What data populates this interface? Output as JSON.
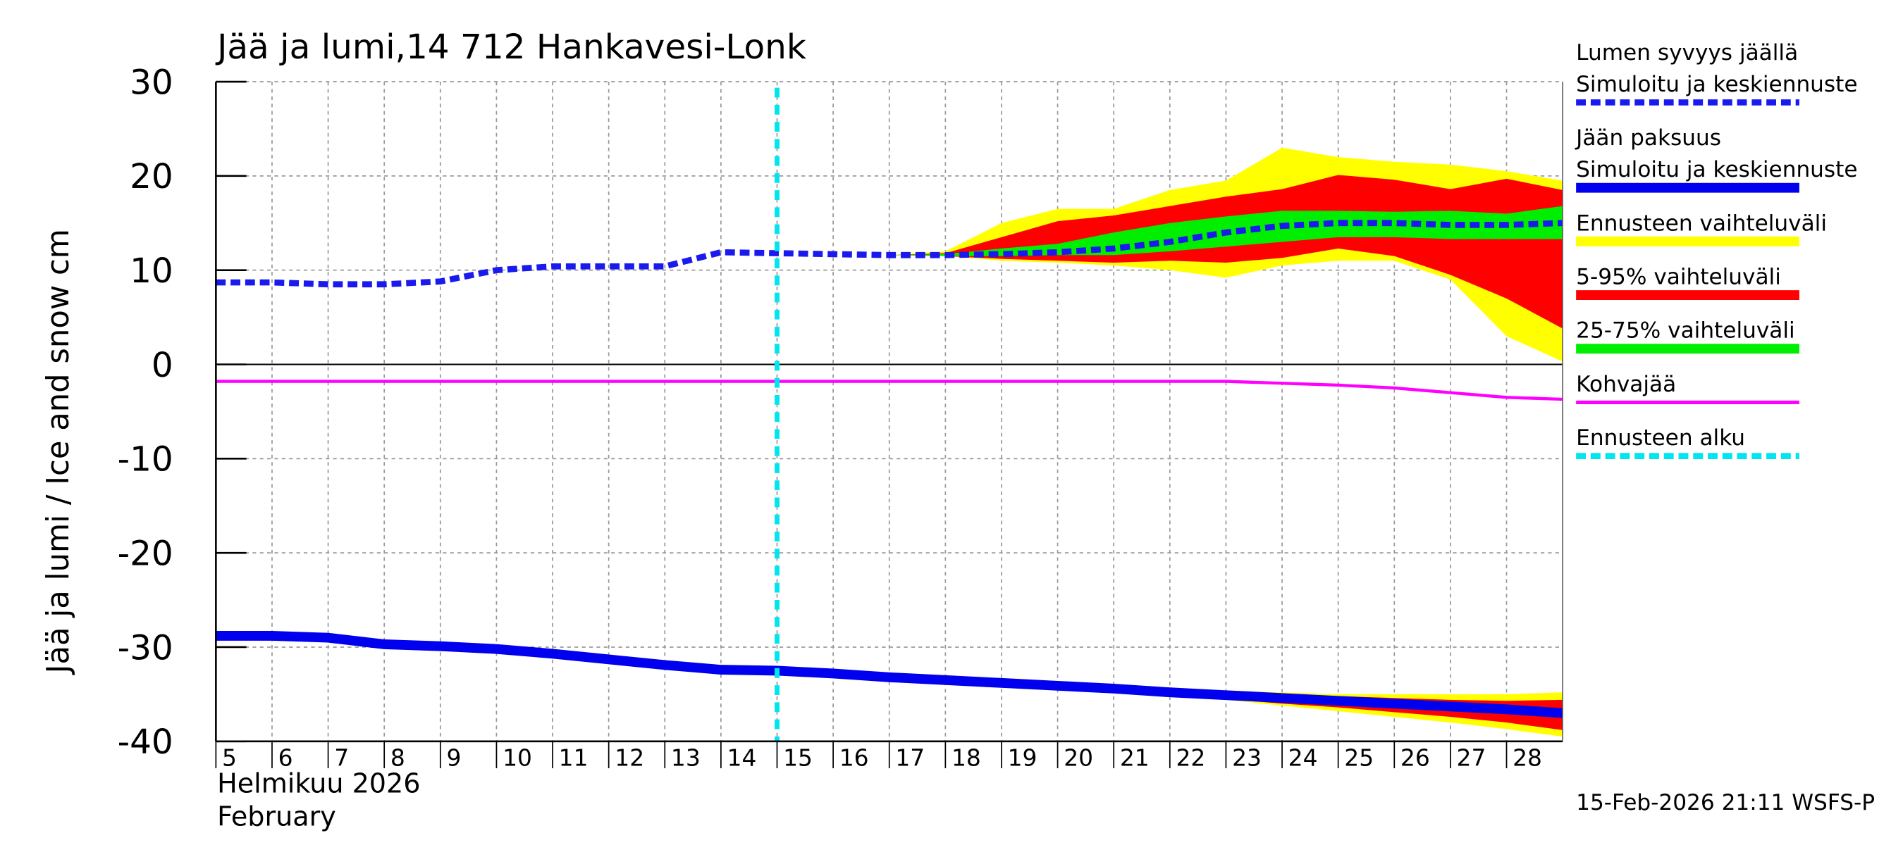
{
  "chart_data": {
    "type": "line",
    "title": "Jää ja lumi,14 712 Hankavesi-Lonk",
    "y_label": "Jää ja lumi / Ice and snow    cm",
    "x_label_lines": [
      "Helmikuu  2026",
      "February"
    ],
    "footer": "15-Feb-2026 21:11 WSFS-P",
    "xlim": [
      5,
      29
    ],
    "xticks": [
      5,
      6,
      7,
      8,
      9,
      10,
      11,
      12,
      13,
      14,
      15,
      16,
      17,
      18,
      19,
      20,
      21,
      22,
      23,
      24,
      25,
      26,
      27,
      28
    ],
    "ylim": [
      -40,
      30
    ],
    "yticks": [
      30,
      20,
      10,
      0,
      -10,
      -20,
      -30,
      -40
    ],
    "grid": true,
    "forecast_start": 15,
    "forecast_start_color": "#00e5ee",
    "series": [
      {
        "kind": "band",
        "color": "#ffff00",
        "x": [
          17,
          18,
          19,
          20,
          21,
          22,
          23,
          24,
          25,
          26,
          27,
          28,
          29
        ],
        "high": [
          11.6,
          12,
          15,
          16.5,
          16.5,
          18.5,
          19.5,
          23,
          22,
          21.5,
          21.2,
          20.5,
          19.5
        ],
        "low": [
          11.6,
          11.5,
          11,
          10.8,
          10.5,
          10,
          9.2,
          10.5,
          11,
          11,
          9,
          3,
          0.3
        ]
      },
      {
        "kind": "band",
        "color": "#ff0000",
        "x": [
          17,
          18,
          19,
          20,
          21,
          22,
          23,
          24,
          25,
          26,
          27,
          28,
          29
        ],
        "high": [
          11.6,
          11.8,
          13.5,
          15.2,
          15.8,
          16.8,
          17.8,
          18.6,
          20.1,
          19.6,
          18.6,
          19.7,
          18.5
        ],
        "low": [
          11.6,
          11.5,
          11.2,
          11,
          10.8,
          11,
          10.8,
          11.3,
          12.3,
          11.5,
          9.5,
          7,
          3.8
        ]
      },
      {
        "kind": "band",
        "color": "#00ee00",
        "x": [
          17,
          18,
          19,
          20,
          21,
          22,
          23,
          24,
          25,
          26,
          27,
          28,
          29
        ],
        "high": [
          11.6,
          11.7,
          12.3,
          12.8,
          14,
          15,
          15.7,
          16.3,
          16.3,
          16.2,
          16.3,
          16,
          16.8
        ],
        "low": [
          11.6,
          11.5,
          11.5,
          11.6,
          11.6,
          12,
          12.5,
          13,
          13.5,
          13.5,
          13.3,
          13.3,
          13.3
        ]
      },
      {
        "kind": "band",
        "color": "#ffff00",
        "x": [
          21,
          22,
          23,
          24,
          25,
          26,
          27,
          28,
          29
        ],
        "high": [
          -34.4,
          -34.4,
          -34.6,
          -34.8,
          -35,
          -35,
          -35,
          -35,
          -34.8
        ],
        "low": [
          -34.4,
          -35,
          -35.6,
          -36.2,
          -36.8,
          -37.4,
          -38,
          -38.7,
          -39.5
        ]
      },
      {
        "kind": "band",
        "color": "#ff0000",
        "x": [
          21,
          22,
          23,
          24,
          25,
          26,
          27,
          28,
          29
        ],
        "high": [
          -34.4,
          -34.6,
          -34.8,
          -35,
          -35.2,
          -35.4,
          -35.6,
          -35.7,
          -35.6
        ],
        "low": [
          -34.4,
          -35,
          -35.5,
          -36,
          -36.4,
          -36.9,
          -37.4,
          -38,
          -38.8
        ]
      },
      {
        "kind": "band",
        "color": "#00ee00",
        "x": [
          21,
          22,
          23,
          24,
          25,
          26,
          27,
          28,
          29
        ],
        "high": [
          -34.4,
          -34.6,
          -34.9,
          -35.2,
          -35.5,
          -35.8,
          -36.1,
          -36.4,
          -36.7
        ],
        "low": [
          -34.4,
          -34.9,
          -35.3,
          -35.6,
          -35.9,
          -36.2,
          -36.5,
          -36.8,
          -37.2
        ]
      },
      {
        "kind": "line",
        "style": "solid",
        "width": 2.5,
        "color": "#ff00ff",
        "x": [
          5,
          6,
          7,
          8,
          9,
          10,
          11,
          12,
          13,
          14,
          15,
          16,
          17,
          18,
          19,
          20,
          21,
          22,
          23,
          24,
          25,
          26,
          27,
          28,
          29
        ],
        "values": [
          -1.8,
          -1.8,
          -1.8,
          -1.8,
          -1.8,
          -1.8,
          -1.8,
          -1.8,
          -1.8,
          -1.8,
          -1.8,
          -1.8,
          -1.8,
          -1.8,
          -1.8,
          -1.8,
          -1.8,
          -1.8,
          -1.8,
          -2,
          -2.2,
          -2.5,
          -3,
          -3.5,
          -3.7
        ]
      },
      {
        "kind": "line",
        "style": "solid",
        "width": 8,
        "color": "#0000ee",
        "x": [
          5,
          6,
          7,
          8,
          9,
          10,
          11,
          12,
          13,
          14,
          15,
          16,
          17,
          18,
          19,
          20,
          21,
          22,
          23,
          24,
          25,
          26,
          27,
          28,
          29
        ],
        "values": [
          -28.8,
          -28.8,
          -29,
          -29.7,
          -29.9,
          -30.2,
          -30.7,
          -31.3,
          -31.9,
          -32.4,
          -32.5,
          -32.8,
          -33.2,
          -33.5,
          -33.8,
          -34.1,
          -34.4,
          -34.8,
          -35.1,
          -35.4,
          -35.7,
          -36,
          -36.3,
          -36.6,
          -37
        ]
      },
      {
        "kind": "line",
        "style": "dashed",
        "width": 5,
        "color": "#1a1aee",
        "x": [
          5,
          6,
          7,
          8,
          9,
          10,
          11,
          12,
          13,
          14,
          15,
          16,
          17,
          18,
          19,
          20,
          21,
          22,
          23,
          24,
          25,
          26,
          27,
          28,
          29
        ],
        "values": [
          8.7,
          8.7,
          8.5,
          8.5,
          8.8,
          10,
          10.4,
          10.4,
          10.4,
          11.9,
          11.8,
          11.7,
          11.6,
          11.6,
          11.7,
          11.9,
          12.3,
          13,
          14,
          14.7,
          15,
          15,
          14.8,
          14.8,
          15
        ]
      }
    ],
    "legend": [
      {
        "labels": [
          "Lumen syvyys jäällä",
          "Simuloitu ja keskiennuste"
        ],
        "color": "#1a1aee",
        "style": "dashed"
      },
      {
        "labels": [
          "Jään paksuus",
          "Simuloitu ja keskiennuste"
        ],
        "color": "#0000ee",
        "style": "solid"
      },
      {
        "labels": [
          "Ennusteen vaihteluväli"
        ],
        "color": "#ffff00",
        "style": "solid"
      },
      {
        "labels": [
          "5-95% vaihteluväli"
        ],
        "color": "#ff0000",
        "style": "solid"
      },
      {
        "labels": [
          "25-75% vaihteluväli"
        ],
        "color": "#00ee00",
        "style": "solid"
      },
      {
        "labels": [
          "Kohvajää"
        ],
        "color": "#ff00ff",
        "style": "thin"
      },
      {
        "labels": [
          "Ennusteen alku"
        ],
        "color": "#00e5ee",
        "style": "dashed"
      }
    ]
  }
}
